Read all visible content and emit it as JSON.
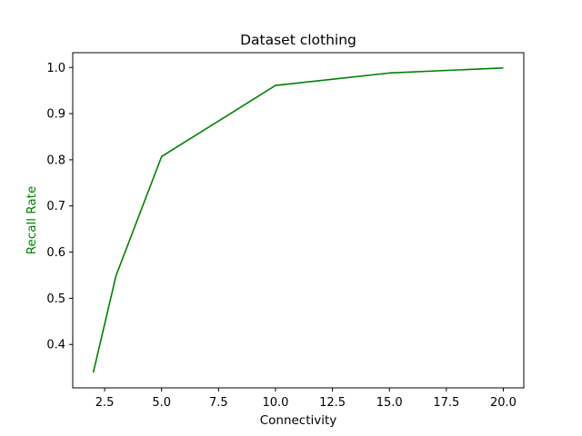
{
  "chart_data": {
    "type": "line",
    "title": "Dataset clothing",
    "xlabel": "Connectivity",
    "ylabel": "Recall Rate",
    "ylabel_color": "#008000",
    "line_color": "#008000",
    "xlim": [
      1.1,
      20.9
    ],
    "ylim": [
      0.306,
      1.032
    ],
    "xticks": [
      2.5,
      5.0,
      7.5,
      10.0,
      12.5,
      15.0,
      17.5,
      20.0
    ],
    "xtick_labels": [
      "2.5",
      "5.0",
      "7.5",
      "10.0",
      "12.5",
      "15.0",
      "17.5",
      "20.0"
    ],
    "yticks": [
      0.4,
      0.5,
      0.6,
      0.7,
      0.8,
      0.9,
      1.0
    ],
    "ytick_labels": [
      "0.4",
      "0.5",
      "0.6",
      "0.7",
      "0.8",
      "0.9",
      "1.0"
    ],
    "grid": false,
    "legend": "none",
    "series": [
      {
        "x": [
          2,
          3,
          5,
          10,
          15,
          20
        ],
        "values": [
          0.339,
          0.549,
          0.807,
          0.961,
          0.988,
          0.999
        ]
      }
    ]
  }
}
